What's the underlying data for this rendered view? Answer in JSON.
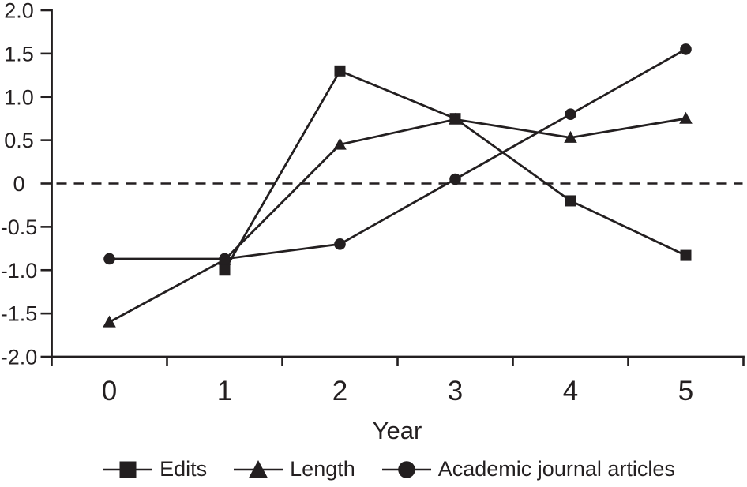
{
  "chart_data": {
    "type": "line",
    "title": "",
    "xlabel": "Year",
    "ylabel": "",
    "x_categories": [
      "0",
      "1",
      "2",
      "3",
      "4",
      "5"
    ],
    "ylim": [
      -2.0,
      2.0
    ],
    "ytick_labels": [
      "2.0",
      "1.5",
      "1.0",
      "0.5",
      "0",
      "-0.5",
      "-1.0",
      "-1.5",
      "-2.0"
    ],
    "grid": "off",
    "zero_line": {
      "value": 0,
      "style": "dashed"
    },
    "legend_position": "bottom",
    "line_color": "#231f20",
    "background_color": "#ffffff",
    "series": [
      {
        "name": "Edits",
        "marker": "square",
        "x": [
          1,
          2,
          3,
          4,
          5
        ],
        "values": [
          -1.0,
          1.3,
          0.75,
          -0.2,
          -0.83
        ]
      },
      {
        "name": "Length",
        "marker": "triangle",
        "x": [
          0,
          1,
          2,
          3,
          4,
          5
        ],
        "values": [
          -1.6,
          -0.88,
          0.45,
          0.74,
          0.53,
          0.75
        ]
      },
      {
        "name": "Academic journal articles",
        "marker": "circle",
        "x": [
          0,
          1,
          2,
          3,
          4,
          5
        ],
        "values": [
          -0.87,
          -0.87,
          -0.7,
          0.05,
          0.8,
          1.55
        ]
      }
    ]
  }
}
